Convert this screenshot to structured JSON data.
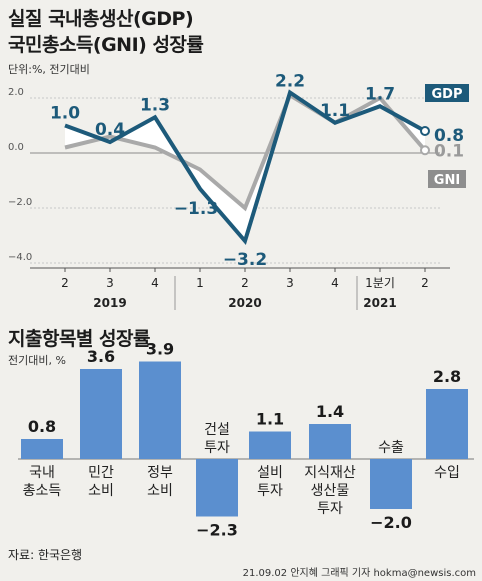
{
  "header": {
    "title_line1": "실질 국내총생산(GDP)",
    "title_line2": "국민총소득(GNI) 성장률",
    "unit": "단위:%, 전기대비"
  },
  "section2": {
    "title": "지출항목별 성장률",
    "unit": "전기대비, %"
  },
  "footer": {
    "source": "자료: 한국은행",
    "credit": "21.09.02 안지혜 그래픽 기자 hokma@newsis.com"
  },
  "colors": {
    "gdp": "#1d5a7a",
    "gni": "#a9a9a9",
    "bar": "#5b8fcf",
    "grid": "#c7c7c7"
  },
  "chart_data": [
    {
      "type": "line",
      "title": "실질 국내총생산(GDP) 국민총소득(GNI) 성장률",
      "unit": "단위:%, 전기대비",
      "x": [
        "2",
        "3",
        "4",
        "1",
        "2",
        "3",
        "4",
        "1분기",
        "2"
      ],
      "year_labels": [
        "2019",
        "2020",
        "2021"
      ],
      "ylim": [
        -4.0,
        2.0
      ],
      "yticks": [
        "2.0",
        "0.0",
        "-2.0",
        "-4.0"
      ],
      "grid": true,
      "series": [
        {
          "name": "GDP",
          "values": [
            1.0,
            0.4,
            1.3,
            -1.3,
            -3.2,
            2.2,
            1.1,
            1.7,
            0.8
          ],
          "labels": [
            "1.0",
            "0.4",
            "1.3",
            "-1.3",
            "-3.2",
            "2.2",
            "1.1",
            "1.7",
            "0.8"
          ]
        },
        {
          "name": "GNI",
          "values": [
            0.2,
            0.6,
            0.2,
            -0.6,
            -2.0,
            2.1,
            1.1,
            2.0,
            0.1
          ],
          "labels": [
            "",
            "",
            "",
            "",
            "",
            "",
            "",
            "",
            "0.1"
          ]
        }
      ]
    },
    {
      "type": "bar",
      "title": "지출항목별 성장률",
      "unit": "전기대비, %",
      "categories": [
        "국내\n총소득",
        "민간\n소비",
        "정부\n소비",
        "건설\n투자",
        "설비\n투자",
        "지식재산\n생산물\n투자",
        "수출",
        "수입"
      ],
      "values": [
        0.8,
        3.6,
        3.9,
        -2.3,
        1.1,
        1.4,
        -2.0,
        2.8
      ],
      "labels": [
        "0.8",
        "3.6",
        "3.9",
        "-2.3",
        "1.1",
        "1.4",
        "-2.0",
        "2.8"
      ]
    }
  ]
}
